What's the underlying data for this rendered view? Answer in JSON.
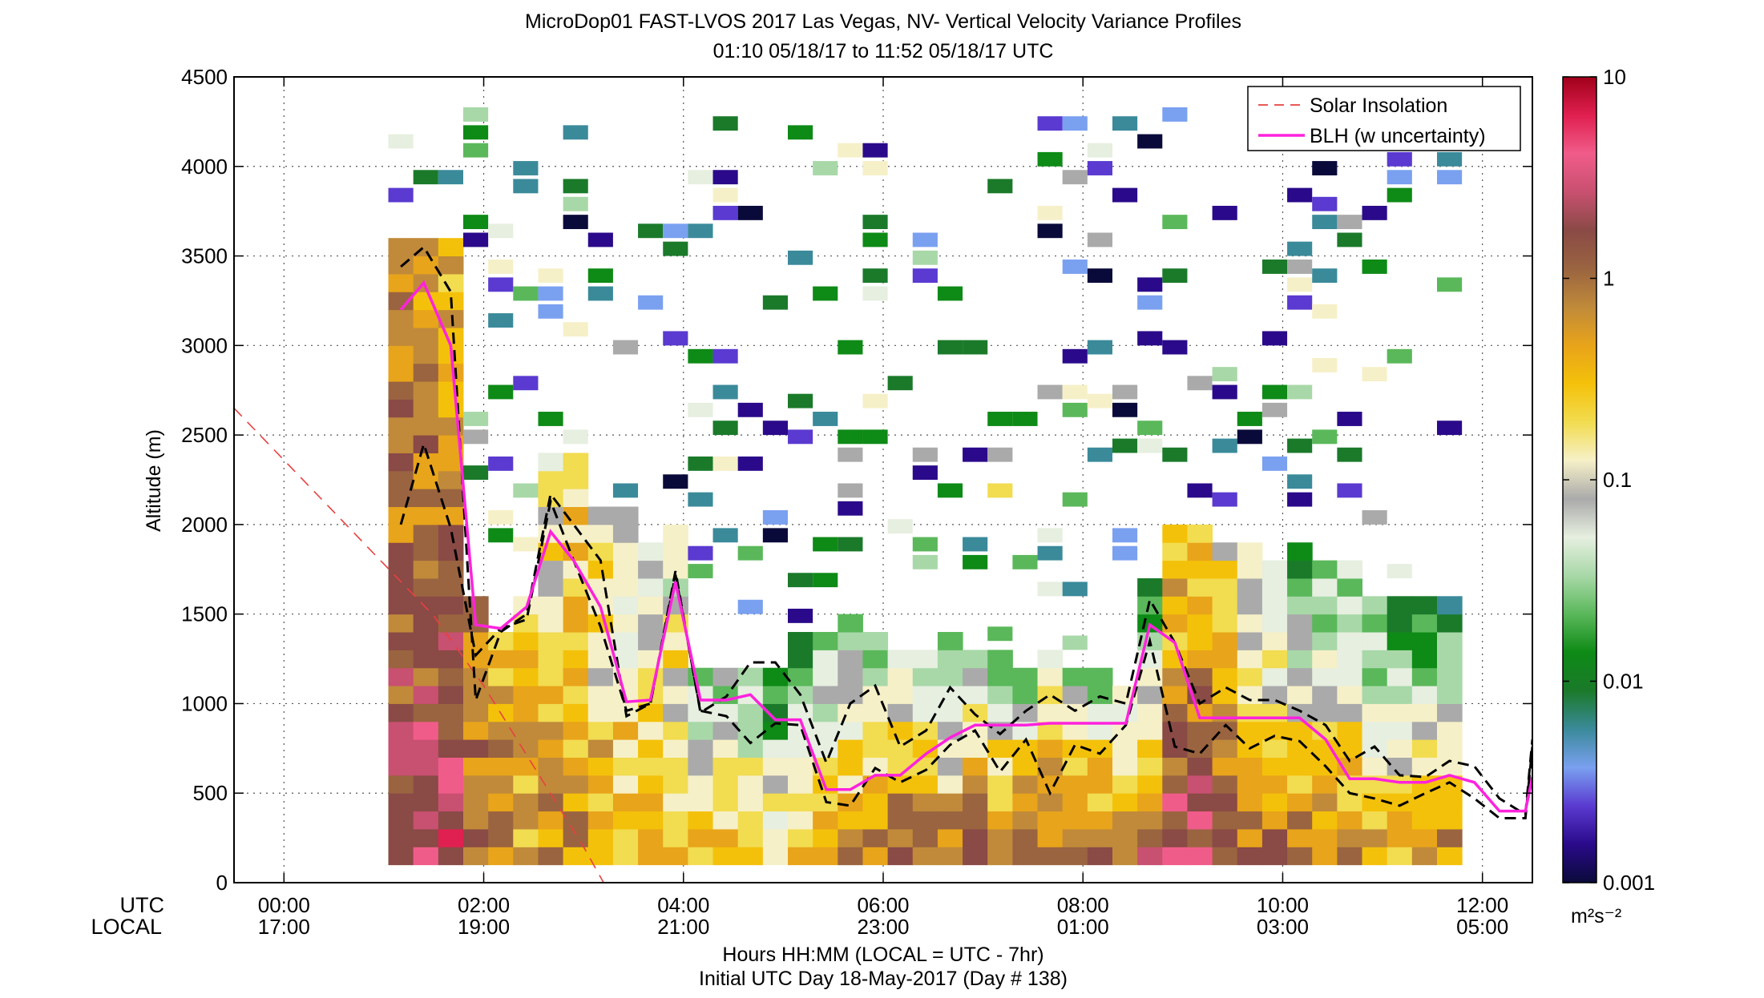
{
  "chart_data": {
    "type": "heatmap",
    "title": "MicroDop01 FAST-LVOS 2017 Las Vegas, NV- Vertical Velocity Variance Profiles",
    "subtitle": "01:10 05/18/17 to 11:52 05/18/17  UTC",
    "ylabel": "Altitude (m)",
    "xlabel": "Hours HH:MM  (LOCAL = UTC - 7hr)",
    "xlabel2": "Initial UTC Day 18-May-2017 (Day # 138)",
    "row_label_utc": "UTC",
    "row_label_local": "LOCAL",
    "xlim_hours": [
      -0.5,
      12.5
    ],
    "ylim": [
      0,
      4500
    ],
    "grid": true,
    "legend_position": "top-right",
    "x_ticks": [
      {
        "hour": 0,
        "utc": "00:00",
        "local": "17:00"
      },
      {
        "hour": 2,
        "utc": "02:00",
        "local": "19:00"
      },
      {
        "hour": 4,
        "utc": "04:00",
        "local": "21:00"
      },
      {
        "hour": 6,
        "utc": "06:00",
        "local": "23:00"
      },
      {
        "hour": 8,
        "utc": "08:00",
        "local": "01:00"
      },
      {
        "hour": 10,
        "utc": "10:00",
        "local": "03:00"
      },
      {
        "hour": 12,
        "utc": "12:00",
        "local": "05:00"
      }
    ],
    "y_ticks": [
      0,
      500,
      1000,
      1500,
      2000,
      2500,
      3000,
      3500,
      4000,
      4500
    ],
    "colorbar": {
      "scale": "log",
      "range": [
        0.001,
        10
      ],
      "ticks": [
        "0.001",
        "0.01",
        "0.1",
        "1",
        "10"
      ],
      "unit": "m²s⁻²",
      "colors": [
        "#0a0a3a",
        "#2a0a8a",
        "#5a3ad0",
        "#7aa0f0",
        "#3a8a9a",
        "#1a7a2a",
        "#0e8a16",
        "#5ab85a",
        "#a8d8a8",
        "#e6efe0",
        "#aaaaaa",
        "#f6f0c8",
        "#f2dc50",
        "#f4c10a",
        "#e8a41a",
        "#c08a3a",
        "#9a6440",
        "#8a4a46",
        "#c85070",
        "#f05c8a",
        "#e02050",
        "#a0001a"
      ]
    },
    "series": [
      {
        "name": "Solar Insolation",
        "color": "#e84040",
        "points": [
          [
            -0.5,
            2650
          ],
          [
            0,
            2360
          ],
          [
            0.5,
            2070
          ],
          [
            1,
            1780
          ],
          [
            1.5,
            1490
          ],
          [
            2,
            1100
          ],
          [
            2.5,
            650
          ],
          [
            3,
            200
          ],
          [
            3.2,
            0
          ]
        ]
      },
      {
        "name": "BLH (w uncertainty)",
        "color": "#ff22dd",
        "points": [
          [
            1.17,
            3200
          ],
          [
            1.4,
            3350
          ],
          [
            1.67,
            3000
          ],
          [
            1.92,
            1440
          ],
          [
            2.17,
            1420
          ],
          [
            2.43,
            1540
          ],
          [
            2.67,
            1960
          ],
          [
            2.9,
            1800
          ],
          [
            3.17,
            1540
          ],
          [
            3.43,
            1010
          ],
          [
            3.67,
            1020
          ],
          [
            3.92,
            1680
          ],
          [
            4.17,
            1020
          ],
          [
            4.43,
            1020
          ],
          [
            4.67,
            1050
          ],
          [
            4.92,
            910
          ],
          [
            5.17,
            910
          ],
          [
            5.43,
            520
          ],
          [
            5.67,
            520
          ],
          [
            5.92,
            600
          ],
          [
            6.17,
            600
          ],
          [
            6.43,
            720
          ],
          [
            6.67,
            810
          ],
          [
            6.92,
            880
          ],
          [
            7.17,
            880
          ],
          [
            7.43,
            880
          ],
          [
            7.67,
            890
          ],
          [
            7.92,
            890
          ],
          [
            8.17,
            890
          ],
          [
            8.43,
            890
          ],
          [
            8.67,
            1440
          ],
          [
            8.92,
            1340
          ],
          [
            9.17,
            920
          ],
          [
            9.43,
            920
          ],
          [
            9.67,
            920
          ],
          [
            9.92,
            920
          ],
          [
            10.17,
            920
          ],
          [
            10.43,
            800
          ],
          [
            10.67,
            580
          ],
          [
            10.92,
            580
          ],
          [
            11.17,
            560
          ],
          [
            11.43,
            560
          ],
          [
            11.67,
            600
          ],
          [
            11.92,
            560
          ],
          [
            12.17,
            400
          ],
          [
            12.43,
            400
          ],
          [
            12.5,
            590
          ]
        ]
      },
      {
        "name": "BLH upper",
        "color": "#000000",
        "points": [
          [
            1.17,
            3440
          ],
          [
            1.4,
            3550
          ],
          [
            1.67,
            3300
          ],
          [
            1.92,
            1020
          ],
          [
            2.17,
            1400
          ],
          [
            2.43,
            1500
          ],
          [
            2.67,
            2170
          ],
          [
            2.9,
            2000
          ],
          [
            3.17,
            1800
          ],
          [
            3.43,
            930
          ],
          [
            3.67,
            1000
          ],
          [
            3.92,
            1740
          ],
          [
            4.17,
            950
          ],
          [
            4.43,
            1040
          ],
          [
            4.67,
            1230
          ],
          [
            4.92,
            1230
          ],
          [
            5.17,
            1050
          ],
          [
            5.43,
            670
          ],
          [
            5.67,
            1000
          ],
          [
            5.92,
            1100
          ],
          [
            6.17,
            760
          ],
          [
            6.43,
            850
          ],
          [
            6.67,
            1090
          ],
          [
            6.92,
            940
          ],
          [
            7.17,
            830
          ],
          [
            7.43,
            960
          ],
          [
            7.67,
            1050
          ],
          [
            7.92,
            960
          ],
          [
            8.17,
            1040
          ],
          [
            8.43,
            1000
          ],
          [
            8.67,
            1580
          ],
          [
            8.92,
            1340
          ],
          [
            9.17,
            1000
          ],
          [
            9.43,
            1090
          ],
          [
            9.67,
            1020
          ],
          [
            9.92,
            1020
          ],
          [
            10.17,
            960
          ],
          [
            10.43,
            880
          ],
          [
            10.67,
            680
          ],
          [
            10.92,
            760
          ],
          [
            11.17,
            600
          ],
          [
            11.43,
            590
          ],
          [
            11.67,
            680
          ],
          [
            11.92,
            650
          ],
          [
            12.17,
            470
          ],
          [
            12.43,
            380
          ],
          [
            12.5,
            800
          ]
        ]
      },
      {
        "name": "BLH lower",
        "color": "#000000",
        "points": [
          [
            1.17,
            2000
          ],
          [
            1.4,
            2450
          ],
          [
            1.67,
            1980
          ],
          [
            1.92,
            1270
          ],
          [
            2.17,
            1420
          ],
          [
            2.43,
            1470
          ],
          [
            2.67,
            2130
          ],
          [
            2.9,
            1800
          ],
          [
            3.17,
            1430
          ],
          [
            3.43,
            960
          ],
          [
            3.67,
            1000
          ],
          [
            3.92,
            1720
          ],
          [
            4.17,
            960
          ],
          [
            4.43,
            930
          ],
          [
            4.67,
            780
          ],
          [
            4.92,
            890
          ],
          [
            5.17,
            880
          ],
          [
            5.43,
            450
          ],
          [
            5.67,
            430
          ],
          [
            5.92,
            640
          ],
          [
            6.17,
            560
          ],
          [
            6.43,
            630
          ],
          [
            6.67,
            770
          ],
          [
            6.92,
            850
          ],
          [
            7.17,
            620
          ],
          [
            7.43,
            800
          ],
          [
            7.67,
            500
          ],
          [
            7.92,
            770
          ],
          [
            8.17,
            720
          ],
          [
            8.43,
            880
          ],
          [
            8.67,
            1350
          ],
          [
            8.92,
            760
          ],
          [
            9.17,
            720
          ],
          [
            9.43,
            880
          ],
          [
            9.67,
            750
          ],
          [
            9.92,
            820
          ],
          [
            10.17,
            790
          ],
          [
            10.43,
            650
          ],
          [
            10.67,
            500
          ],
          [
            10.92,
            470
          ],
          [
            11.17,
            430
          ],
          [
            11.43,
            500
          ],
          [
            11.67,
            560
          ],
          [
            11.92,
            470
          ],
          [
            12.17,
            360
          ],
          [
            12.43,
            360
          ],
          [
            12.5,
            760
          ]
        ]
      }
    ],
    "legend": [
      {
        "label": "Solar Insolation",
        "style": "dashed",
        "color": "#e84040"
      },
      {
        "label": "BLH (w uncertainty)",
        "style": "solid",
        "color": "#ff22dd"
      }
    ],
    "heatmap_columns": [
      {
        "hour": 1.17,
        "top": 3600,
        "vmax": 1.5,
        "vmin": 0.6
      },
      {
        "hour": 1.42,
        "top": 3600,
        "vmax": 2.5,
        "vmin": 0.4
      },
      {
        "hour": 1.67,
        "top": 3600,
        "vmax": 3.0,
        "vmin": 0.3
      },
      {
        "hour": 1.92,
        "top": 1550,
        "vmax": 1.5,
        "vmin": 0.6
      },
      {
        "hour": 2.17,
        "top": 1400,
        "vmax": 0.8,
        "vmin": 0.3
      },
      {
        "hour": 2.42,
        "top": 1550,
        "vmax": 0.5,
        "vmin": 0.2
      },
      {
        "hour": 2.67,
        "top": 2350,
        "vmax": 0.7,
        "vmin": 0.1
      },
      {
        "hour": 2.92,
        "top": 2350,
        "vmax": 0.6,
        "vmin": 0.2
      },
      {
        "hour": 3.17,
        "top": 2050,
        "vmax": 0.4,
        "vmin": 0.1
      },
      {
        "hour": 3.42,
        "top": 2050,
        "vmax": 0.3,
        "vmin": 0.06
      },
      {
        "hour": 3.67,
        "top": 1900,
        "vmax": 0.5,
        "vmin": 0.05
      },
      {
        "hour": 3.92,
        "top": 2000,
        "vmax": 0.4,
        "vmin": 0.05
      },
      {
        "hour": 4.17,
        "top": 1200,
        "vmax": 0.3,
        "vmin": 0.02
      },
      {
        "hour": 4.42,
        "top": 1200,
        "vmax": 0.3,
        "vmin": 0.03
      },
      {
        "hour": 4.67,
        "top": 1200,
        "vmax": 0.3,
        "vmin": 0.02
      },
      {
        "hour": 4.92,
        "top": 1200,
        "vmax": 0.2,
        "vmin": 0.01
      },
      {
        "hour": 5.17,
        "top": 1350,
        "vmax": 0.3,
        "vmin": 0.01
      },
      {
        "hour": 5.42,
        "top": 1350,
        "vmax": 0.3,
        "vmin": 0.02
      },
      {
        "hour": 5.67,
        "top": 1450,
        "vmax": 0.6,
        "vmin": 0.02
      },
      {
        "hour": 5.92,
        "top": 1350,
        "vmax": 0.8,
        "vmin": 0.03
      },
      {
        "hour": 6.17,
        "top": 1250,
        "vmax": 1.0,
        "vmin": 0.05
      },
      {
        "hour": 6.42,
        "top": 1250,
        "vmax": 1.2,
        "vmin": 0.03
      },
      {
        "hour": 6.67,
        "top": 1350,
        "vmax": 1.0,
        "vmin": 0.02
      },
      {
        "hour": 6.92,
        "top": 1250,
        "vmax": 1.5,
        "vmin": 0.05
      },
      {
        "hour": 7.17,
        "top": 1250,
        "vmax": 1.0,
        "vmin": 0.02
      },
      {
        "hour": 7.42,
        "top": 1150,
        "vmax": 1.0,
        "vmin": 0.03
      },
      {
        "hour": 7.67,
        "top": 1300,
        "vmax": 1.2,
        "vmin": 0.05
      },
      {
        "hour": 7.92,
        "top": 1200,
        "vmax": 1.5,
        "vmin": 0.03
      },
      {
        "hour": 8.17,
        "top": 1150,
        "vmax": 1.0,
        "vmin": 0.03
      },
      {
        "hour": 8.42,
        "top": 1100,
        "vmax": 1.2,
        "vmin": 0.05
      },
      {
        "hour": 8.67,
        "top": 1700,
        "vmax": 2.0,
        "vmin": 0.01
      },
      {
        "hour": 8.92,
        "top": 1950,
        "vmax": 3.0,
        "vmin": 0.2
      },
      {
        "hour": 9.17,
        "top": 1950,
        "vmax": 2.5,
        "vmin": 0.2
      },
      {
        "hour": 9.42,
        "top": 1900,
        "vmax": 1.5,
        "vmin": 0.1
      },
      {
        "hour": 9.67,
        "top": 1850,
        "vmax": 1.2,
        "vmin": 0.05
      },
      {
        "hour": 9.92,
        "top": 1800,
        "vmax": 1.0,
        "vmin": 0.02
      },
      {
        "hour": 10.17,
        "top": 1900,
        "vmax": 1.0,
        "vmin": 0.01
      },
      {
        "hour": 10.42,
        "top": 1750,
        "vmax": 0.8,
        "vmin": 0.02
      },
      {
        "hour": 10.67,
        "top": 1750,
        "vmax": 0.8,
        "vmin": 0.02
      },
      {
        "hour": 10.92,
        "top": 1600,
        "vmax": 0.6,
        "vmin": 0.01
      },
      {
        "hour": 11.17,
        "top": 1600,
        "vmax": 0.5,
        "vmin": 0.01
      },
      {
        "hour": 11.42,
        "top": 1600,
        "vmax": 0.5,
        "vmin": 0.01
      },
      {
        "hour": 11.67,
        "top": 1600,
        "vmax": 0.6,
        "vmin": 0.01
      }
    ]
  }
}
